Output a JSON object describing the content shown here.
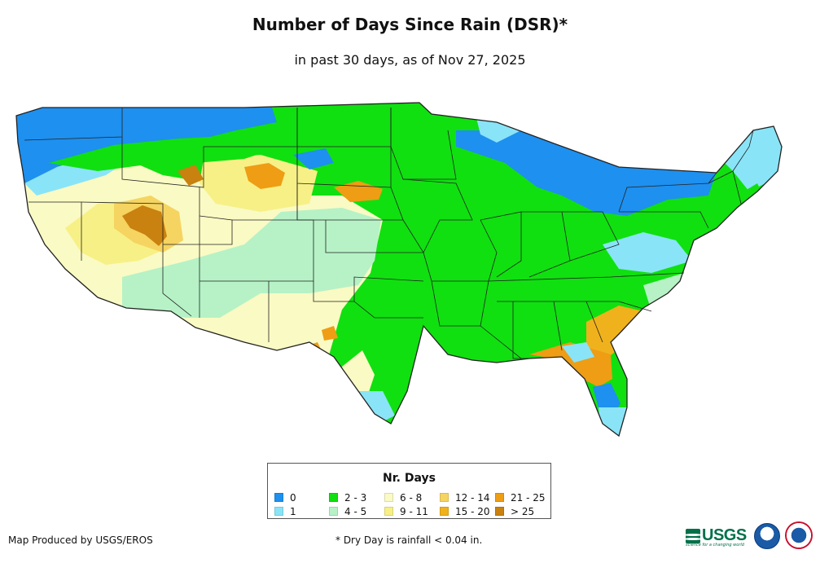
{
  "title": "Number of Days Since Rain (DSR)*",
  "subtitle": "in past 30 days, as of Nov 27, 2025",
  "legend": {
    "title": "Nr. Days",
    "items": [
      {
        "label": "0",
        "color": "#1e90ef"
      },
      {
        "label": "1",
        "color": "#8ae4f7"
      },
      {
        "label": "2 - 3",
        "color": "#10e010"
      },
      {
        "label": "4 - 5",
        "color": "#b6f2c6"
      },
      {
        "label": "6 - 8",
        "color": "#fafac4"
      },
      {
        "label": "9 - 11",
        "color": "#f7f086"
      },
      {
        "label": "12 - 14",
        "color": "#f5d461"
      },
      {
        "label": "15 - 20",
        "color": "#f0b21c"
      },
      {
        "label": "21 - 25",
        "color": "#ee9d14"
      },
      {
        "label": "> 25",
        "color": "#c9810f"
      }
    ]
  },
  "credit": "Map Produced by USGS/EROS",
  "footnote": "* Dry Day is rainfall < 0.04 in.",
  "logos": {
    "usgs": "USGS",
    "usgs_tagline": "science for a changing world"
  },
  "map_regions": [
    {
      "name": "pacific-northwest",
      "category": "0"
    },
    {
      "name": "northern-rockies-north",
      "category": "0"
    },
    {
      "name": "california-coast",
      "category": "6 - 8"
    },
    {
      "name": "great-basin",
      "category": "9 - 11"
    },
    {
      "name": "utah-highlands",
      "category": "> 25"
    },
    {
      "name": "wyoming-basin",
      "category": "21 - 25"
    },
    {
      "name": "southwest",
      "category": "4 - 5"
    },
    {
      "name": "central-plains",
      "category": "2 - 3"
    },
    {
      "name": "great-lakes",
      "category": "0"
    },
    {
      "name": "new-england",
      "category": "1"
    },
    {
      "name": "southeast",
      "category": "2 - 3"
    },
    {
      "name": "georgia-coast",
      "category": "15 - 20"
    },
    {
      "name": "florida-north",
      "category": "21 - 25"
    },
    {
      "name": "florida-south",
      "category": "0"
    },
    {
      "name": "texas-south",
      "category": "1"
    },
    {
      "name": "new-mexico-south",
      "category": "21 - 25"
    }
  ]
}
